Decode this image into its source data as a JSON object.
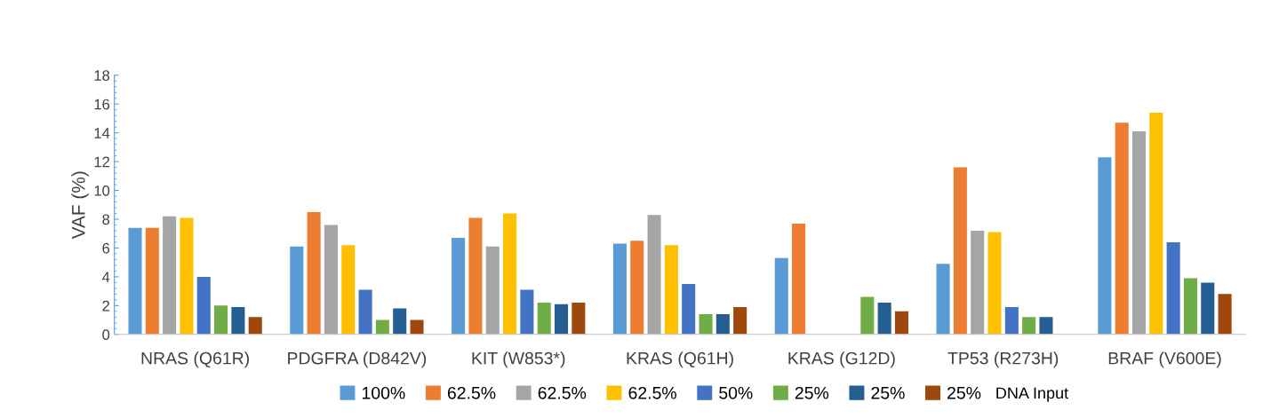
{
  "chart_data": {
    "type": "bar",
    "ylabel": "VAF (%)",
    "legend_title": "DNA Input",
    "categories": [
      "NRAS (Q61R)",
      "PDGFRA (D842V)",
      "KIT (W853*)",
      "KRAS (Q61H)",
      "KRAS (G12D)",
      "TP53 (R273H)",
      "BRAF (V600E)"
    ],
    "series": [
      {
        "name": "100%",
        "color": "#5b9bd5",
        "values": [
          7.4,
          6.1,
          6.7,
          6.3,
          5.3,
          4.9,
          12.3
        ]
      },
      {
        "name": "62.5%",
        "color": "#ed7d31",
        "values": [
          7.4,
          8.5,
          8.1,
          6.5,
          7.7,
          11.6,
          14.7
        ]
      },
      {
        "name": "62.5%",
        "color": "#a5a5a5",
        "values": [
          8.2,
          7.6,
          6.1,
          8.3,
          null,
          7.2,
          14.1
        ]
      },
      {
        "name": "62.5%",
        "color": "#ffc000",
        "values": [
          8.1,
          6.2,
          8.4,
          6.2,
          null,
          7.1,
          15.4
        ]
      },
      {
        "name": "50%",
        "color": "#4472c4",
        "values": [
          4.0,
          3.1,
          3.1,
          3.5,
          null,
          1.9,
          6.4
        ]
      },
      {
        "name": "25%",
        "color": "#70ad47",
        "values": [
          2.0,
          1.0,
          2.2,
          1.4,
          2.6,
          1.2,
          3.9
        ]
      },
      {
        "name": "25%",
        "color": "#255e91",
        "values": [
          1.9,
          1.8,
          2.1,
          1.4,
          2.2,
          1.2,
          3.6
        ]
      },
      {
        "name": "25%",
        "color": "#9e480e",
        "values": [
          1.2,
          1.0,
          2.2,
          1.9,
          1.6,
          null,
          2.8
        ]
      }
    ],
    "ylim": [
      0,
      18
    ],
    "yticks": [
      0,
      2,
      4,
      6,
      8,
      10,
      12,
      14,
      16,
      18
    ],
    "grid": false,
    "legend": "bottom"
  }
}
